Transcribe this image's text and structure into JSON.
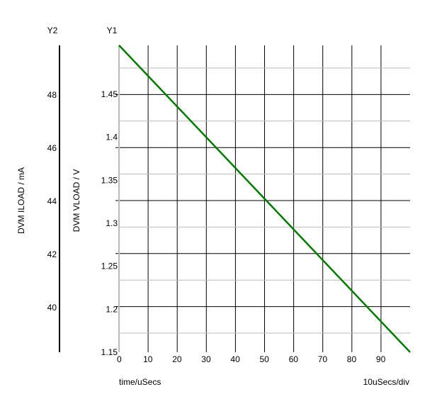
{
  "chart_data": {
    "type": "line",
    "y1_title": "Y1",
    "y2_title": "Y2",
    "y1_label": "DVM VLOAD / V",
    "y2_label": "DVM ILOAD / mA",
    "xlabel": "time/uSecs",
    "x_scale_note": "10uSecs/div",
    "xlim": [
      0,
      100
    ],
    "x_ticks": [
      "0",
      "10",
      "20",
      "30",
      "40",
      "50",
      "60",
      "70",
      "80",
      "90"
    ],
    "y1_ticks": [
      "1.45",
      "1.4",
      "1.35",
      "1.3",
      "1.25",
      "1.2",
      "1.15"
    ],
    "y2_ticks": [
      "48",
      "46",
      "44",
      "42",
      "40"
    ],
    "grid": true,
    "series": [
      {
        "color": "#007a00",
        "axis": "y1",
        "x": [
          0,
          100
        ],
        "y": [
          1.507,
          1.15
        ]
      }
    ]
  }
}
